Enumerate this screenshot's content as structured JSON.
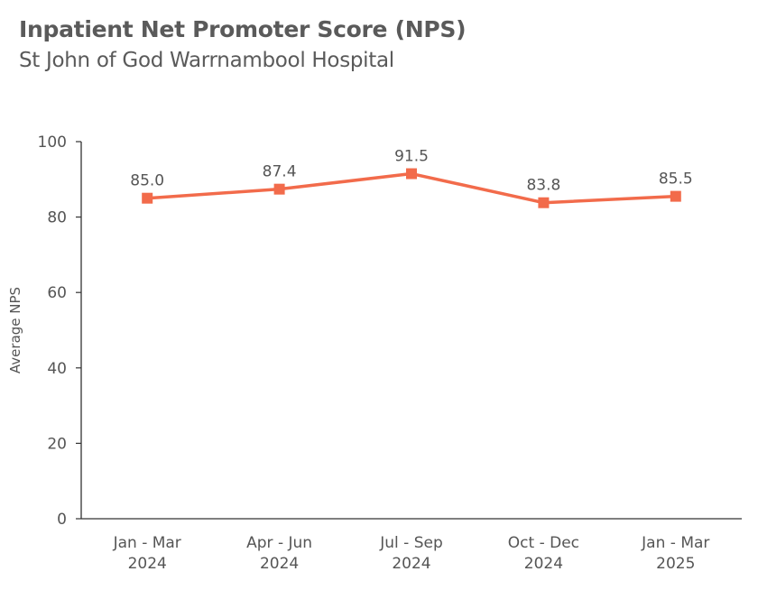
{
  "header": {
    "title": "Inpatient Net Promoter Score (NPS)",
    "subtitle": "St John of God Warrnambool Hospital"
  },
  "colors": {
    "series": "#f26b4b",
    "axis": "#333333",
    "text": "#555555"
  },
  "chart_data": {
    "type": "line",
    "title": "Inpatient Net Promoter Score (NPS)",
    "subtitle": "St John of God Warrnambool Hospital",
    "xlabel": "",
    "ylabel": "Average NPS",
    "ylim": [
      0,
      100
    ],
    "yticks": [
      0,
      20,
      40,
      60,
      80,
      100
    ],
    "grid": false,
    "legend": null,
    "categories": [
      [
        "Jan - Mar",
        "2024"
      ],
      [
        "Apr - Jun",
        "2024"
      ],
      [
        "Jul - Sep",
        "2024"
      ],
      [
        "Oct - Dec",
        "2024"
      ],
      [
        "Jan - Mar",
        "2025"
      ]
    ],
    "series": [
      {
        "name": "Average NPS",
        "values": [
          85.0,
          87.4,
          91.5,
          83.8,
          85.5
        ],
        "labels": [
          "85.0",
          "87.4",
          "91.5",
          "83.8",
          "85.5"
        ],
        "marker": "square"
      }
    ]
  }
}
